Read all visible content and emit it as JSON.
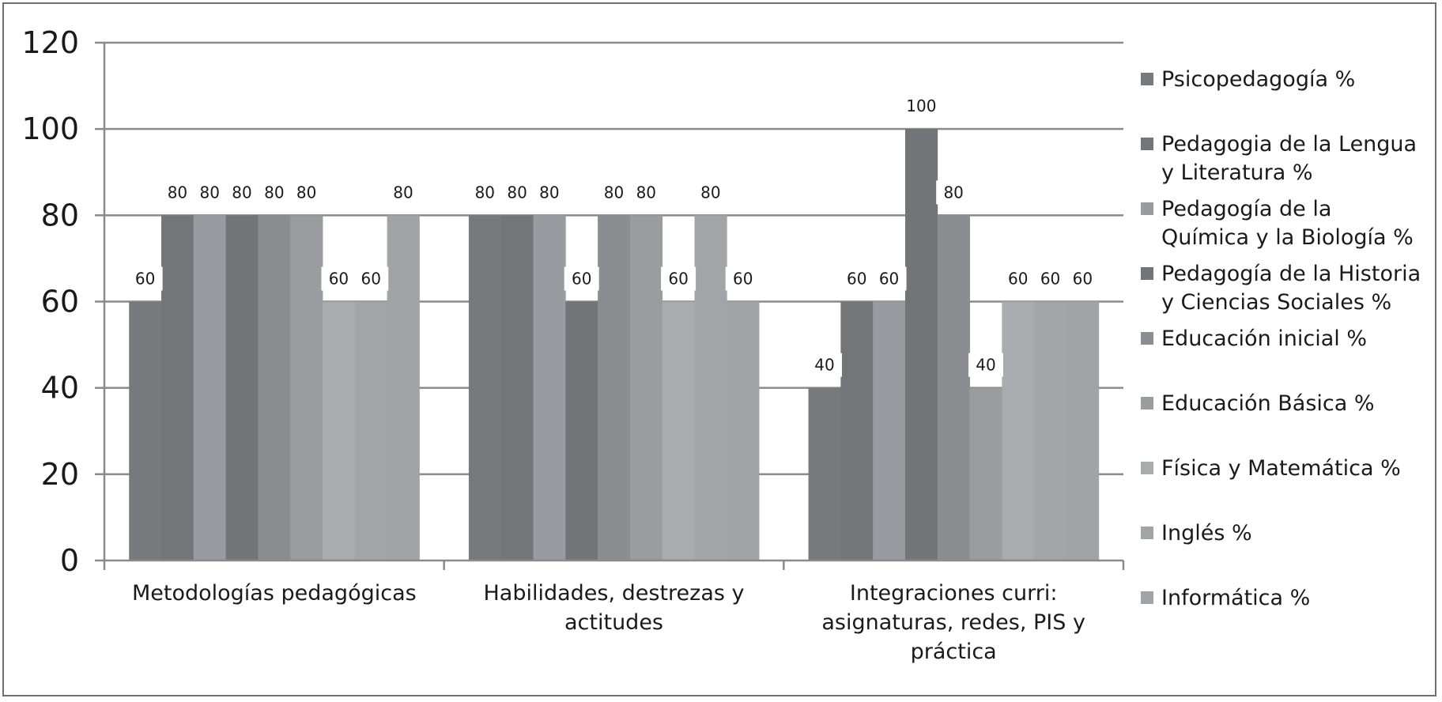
{
  "chart_data": {
    "type": "bar",
    "categories": [
      [
        "Metodologías pedagógicas"
      ],
      [
        "Habilidades, destrezas y",
        "actitudes"
      ],
      [
        "Integraciones curri:",
        "asignaturas, redes, PIS y",
        "práctica"
      ]
    ],
    "series": [
      {
        "name": [
          "Psicopedagogía %"
        ],
        "color": "#78797d",
        "values": [
          60,
          80,
          40
        ]
      },
      {
        "name": [
          "Pedagogia de la Lengua",
          "y Literatura %"
        ],
        "color": "#747579",
        "values": [
          80,
          80,
          60
        ]
      },
      {
        "name": [
          "Pedagogía de la",
          "Química y la Biología %"
        ],
        "color": "#9a9ba0",
        "values": [
          80,
          80,
          60
        ]
      },
      {
        "name": [
          "Pedagogía de la Historia",
          "y Ciencias Sociales %"
        ],
        "color": "#737477",
        "values": [
          80,
          60,
          100
        ]
      },
      {
        "name": [
          "Educación inicial  %"
        ],
        "color": "#8c8d91",
        "values": [
          80,
          80,
          80
        ]
      },
      {
        "name": [
          "Educación Básica %"
        ],
        "color": "#9b9ca0",
        "values": [
          80,
          80,
          40
        ]
      },
      {
        "name": [
          "Física y Matemática %"
        ],
        "color": "#aaabae",
        "values": [
          60,
          60,
          60
        ]
      },
      {
        "name": [
          "Inglés  %"
        ],
        "color": "#a3a4a7",
        "values": [
          60,
          80,
          60
        ]
      },
      {
        "name": [
          "Informática %"
        ],
        "color": "#a2a3a6",
        "values": [
          80,
          60,
          60
        ]
      }
    ],
    "ylim": [
      0,
      120
    ],
    "yticks": [
      "0",
      "20",
      "40",
      "60",
      "80",
      "100",
      "120"
    ],
    "grid": true,
    "legend_position": "right",
    "data_labels": true
  }
}
